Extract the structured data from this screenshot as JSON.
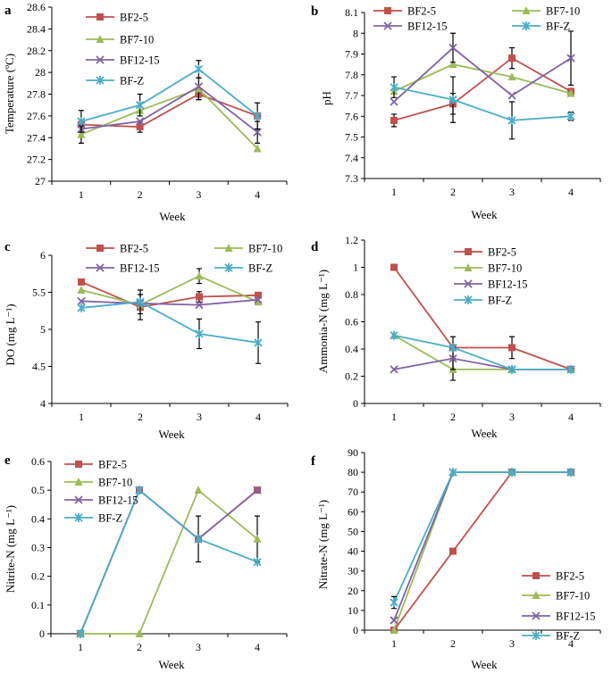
{
  "series_colors": {
    "BF2-5": "#c0504d",
    "BF7-10": "#9bbb59",
    "BF12-15": "#8064a2",
    "BF-Z": "#4bacc6"
  },
  "series_markers": {
    "BF2-5": "square",
    "BF7-10": "triangle",
    "BF12-15": "x",
    "BF-Z": "star"
  },
  "chart_data": [
    {
      "panel": "a",
      "type": "line",
      "xlabel": "Week",
      "ylabel": "Temperature (ºC)",
      "categories": [
        1,
        2,
        3,
        4
      ],
      "ylim": [
        27,
        28.6
      ],
      "yticks": [
        "27",
        "27.2",
        "27.4",
        "27.6",
        "27.8",
        "28",
        "28.2",
        "28.4",
        "28.6"
      ],
      "series": [
        {
          "name": "BF2-5",
          "values": [
            27.52,
            27.5,
            27.8,
            27.6
          ],
          "err": [
            0,
            0.05,
            0.05,
            0
          ]
        },
        {
          "name": "BF7-10",
          "values": [
            27.43,
            27.65,
            27.85,
            27.3
          ],
          "err": [
            0.08,
            0,
            0.1,
            0
          ]
        },
        {
          "name": "BF12-15",
          "values": [
            27.48,
            27.55,
            27.87,
            27.45
          ],
          "err": [
            0,
            0,
            0,
            0.1
          ]
        },
        {
          "name": "BF-Z",
          "values": [
            27.55,
            27.7,
            28.03,
            27.6
          ],
          "err": [
            0.1,
            0.1,
            0.08,
            0.12
          ]
        }
      ]
    },
    {
      "panel": "b",
      "type": "line",
      "xlabel": "Week",
      "ylabel": "pH",
      "categories": [
        1,
        2,
        3,
        4
      ],
      "ylim": [
        7.3,
        8.1
      ],
      "yticks": [
        "7.3",
        "7.4",
        "7.5",
        "7.6",
        "7.7",
        "7.8",
        "7.9",
        "8",
        "8.1"
      ],
      "series": [
        {
          "name": "BF2-5",
          "values": [
            7.58,
            7.66,
            7.88,
            7.72
          ],
          "err": [
            0.03,
            0.05,
            0.05,
            0
          ]
        },
        {
          "name": "BF7-10",
          "values": [
            7.72,
            7.85,
            7.79,
            7.71
          ],
          "err": [
            0,
            0,
            0,
            0
          ]
        },
        {
          "name": "BF12-15",
          "values": [
            7.67,
            7.93,
            7.7,
            7.88
          ],
          "err": [
            0,
            0.07,
            0,
            0.13
          ]
        },
        {
          "name": "BF-Z",
          "values": [
            7.74,
            7.68,
            7.58,
            7.6
          ],
          "err": [
            0.05,
            0.11,
            0.09,
            0.02
          ]
        }
      ]
    },
    {
      "panel": "c",
      "type": "line",
      "xlabel": "Week",
      "ylabel": "DO (mg L⁻¹)",
      "categories": [
        1,
        2,
        3,
        4
      ],
      "ylim": [
        4,
        6
      ],
      "yticks": [
        "4",
        "4.5",
        "5",
        "5.5",
        "6"
      ],
      "series": [
        {
          "name": "BF2-5",
          "values": [
            5.64,
            5.3,
            5.44,
            5.46
          ],
          "err": [
            0,
            0.17,
            0.07,
            0
          ]
        },
        {
          "name": "BF7-10",
          "values": [
            5.53,
            5.33,
            5.72,
            5.37
          ],
          "err": [
            0,
            0,
            0.1,
            0
          ]
        },
        {
          "name": "BF12-15",
          "values": [
            5.38,
            5.35,
            5.33,
            5.4
          ],
          "err": [
            0,
            0,
            0,
            0
          ]
        },
        {
          "name": "BF-Z",
          "values": [
            5.29,
            5.37,
            4.94,
            4.82
          ],
          "err": [
            0,
            0.16,
            0.2,
            0.28
          ]
        }
      ]
    },
    {
      "panel": "d",
      "type": "line",
      "xlabel": "Week",
      "ylabel": "Ammonia-N (mg L⁻¹)",
      "categories": [
        1,
        2,
        3,
        4
      ],
      "ylim": [
        0,
        1.2
      ],
      "yticks": [
        "0",
        "0.2",
        "0.4",
        "0.6",
        "0.8",
        "1",
        "1.2"
      ],
      "series": [
        {
          "name": "BF2-5",
          "values": [
            1.0,
            0.41,
            0.41,
            0.25
          ],
          "err": [
            0,
            0.08,
            0.08,
            0
          ]
        },
        {
          "name": "BF7-10",
          "values": [
            0.5,
            0.25,
            0.25,
            0.25
          ],
          "err": [
            0,
            0.08,
            0,
            0
          ]
        },
        {
          "name": "BF12-15",
          "values": [
            0.25,
            0.33,
            0.25,
            0.25
          ],
          "err": [
            0,
            0.08,
            0,
            0
          ]
        },
        {
          "name": "BF-Z",
          "values": [
            0.5,
            0.41,
            0.25,
            0.25
          ],
          "err": [
            0,
            0,
            0,
            0
          ]
        }
      ]
    },
    {
      "panel": "e",
      "type": "line",
      "xlabel": "Week",
      "ylabel": "Nitrite-N (mg L⁻¹)",
      "categories": [
        1,
        2,
        3,
        4
      ],
      "ylim": [
        0,
        0.6
      ],
      "yticks": [
        "0",
        "0.1",
        "0.2",
        "0.3",
        "0.4",
        "0.5",
        "0.6"
      ],
      "series": [
        {
          "name": "BF2-5",
          "values": [
            0,
            0.5,
            0.33,
            0.5
          ],
          "err": [
            0,
            0,
            0.08,
            0
          ]
        },
        {
          "name": "BF7-10",
          "values": [
            0,
            0,
            0.5,
            0.33
          ],
          "err": [
            0,
            0,
            0,
            0.08
          ]
        },
        {
          "name": "BF12-15",
          "values": [
            0,
            0.5,
            0.33,
            0.5
          ],
          "err": [
            0,
            0,
            0,
            0
          ]
        },
        {
          "name": "BF-Z",
          "values": [
            0,
            0.5,
            0.33,
            0.25
          ],
          "err": [
            0,
            0,
            0,
            0
          ]
        }
      ]
    },
    {
      "panel": "f",
      "type": "line",
      "xlabel": "Week",
      "ylabel": "Nitrate-N (mg L⁻¹)",
      "categories": [
        1,
        2,
        3,
        4
      ],
      "ylim": [
        0,
        90
      ],
      "yticks": [
        "0",
        "10",
        "20",
        "30",
        "40",
        "50",
        "60",
        "70",
        "80",
        "90"
      ],
      "series": [
        {
          "name": "BF2-5",
          "values": [
            0,
            40,
            80,
            80
          ],
          "err": [
            0,
            0,
            0,
            0
          ]
        },
        {
          "name": "BF7-10",
          "values": [
            0,
            80,
            80,
            80
          ],
          "err": [
            0,
            0,
            0,
            0
          ]
        },
        {
          "name": "BF12-15",
          "values": [
            5,
            80,
            80,
            80
          ],
          "err": [
            0,
            0,
            0,
            0
          ]
        },
        {
          "name": "BF-Z",
          "values": [
            14,
            80,
            80,
            80
          ],
          "err": [
            3,
            0,
            0,
            0
          ]
        }
      ]
    }
  ]
}
